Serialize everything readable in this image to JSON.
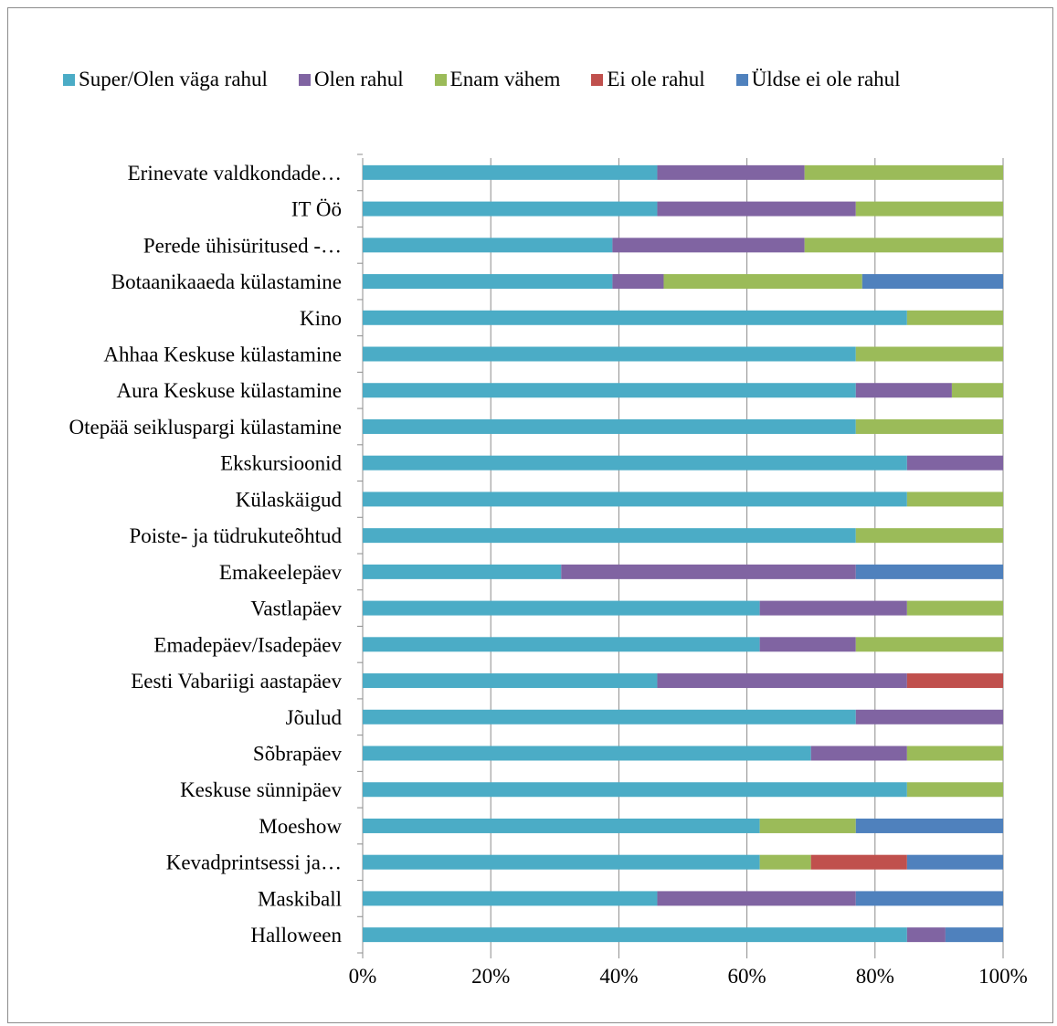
{
  "chart_data": {
    "type": "bar",
    "orientation": "horizontal",
    "stacked": "percent",
    "title": "",
    "xlabel": "",
    "ylabel": "",
    "xlim": [
      0,
      100
    ],
    "x_ticks": [
      "0%",
      "20%",
      "40%",
      "60%",
      "80%",
      "100%"
    ],
    "grid": true,
    "legend_position": "top",
    "categories": [
      "Erinevate valdkondade…",
      "IT Öö",
      "Perede ühisüritused -…",
      "Botaanikaaeda külastamine",
      "Kino",
      "Ahhaa Keskuse külastamine",
      "Aura Keskuse külastamine",
      "Otepää seikluspargi külastamine",
      "Ekskursioonid",
      "Külaskäigud",
      "Poiste- ja tüdrukuteõhtud",
      "Emakeelepäev",
      "Vastlapäev",
      "Emadepäev/Isadepäev",
      "Eesti Vabariigi aastapäev",
      "Jõulud",
      "Sõbrapäev",
      "Keskuse sünnipäev",
      "Moeshow",
      "Kevadprintsessi ja…",
      "Maskiball",
      "Halloween"
    ],
    "series": [
      {
        "name": "Super/Olen väga rahul",
        "color": "#4bacc6",
        "values": [
          46,
          46,
          39,
          39,
          85,
          77,
          77,
          77,
          85,
          85,
          77,
          31,
          62,
          62,
          46,
          77,
          70,
          85,
          62,
          62,
          46,
          85
        ]
      },
      {
        "name": "Olen rahul",
        "color": "#8064a2",
        "values": [
          23,
          31,
          30,
          8,
          0,
          0,
          15,
          0,
          15,
          0,
          0,
          46,
          23,
          15,
          39,
          23,
          15,
          0,
          0,
          0,
          31,
          6
        ]
      },
      {
        "name": "Enam vähem",
        "color": "#9bbb59",
        "values": [
          31,
          23,
          31,
          31,
          15,
          23,
          8,
          23,
          0,
          15,
          23,
          0,
          15,
          23,
          0,
          0,
          15,
          15,
          15,
          8,
          0,
          0
        ]
      },
      {
        "name": "Ei ole rahul",
        "color": "#c0504d",
        "values": [
          0,
          0,
          0,
          0,
          0,
          0,
          0,
          0,
          0,
          0,
          0,
          0,
          0,
          0,
          15,
          0,
          0,
          0,
          0,
          15,
          0,
          0
        ]
      },
      {
        "name": "Üldse ei ole rahul",
        "color": "#4f81bd",
        "values": [
          0,
          0,
          0,
          22,
          0,
          0,
          0,
          0,
          0,
          0,
          0,
          23,
          0,
          0,
          0,
          0,
          0,
          0,
          23,
          15,
          23,
          9
        ]
      }
    ]
  }
}
